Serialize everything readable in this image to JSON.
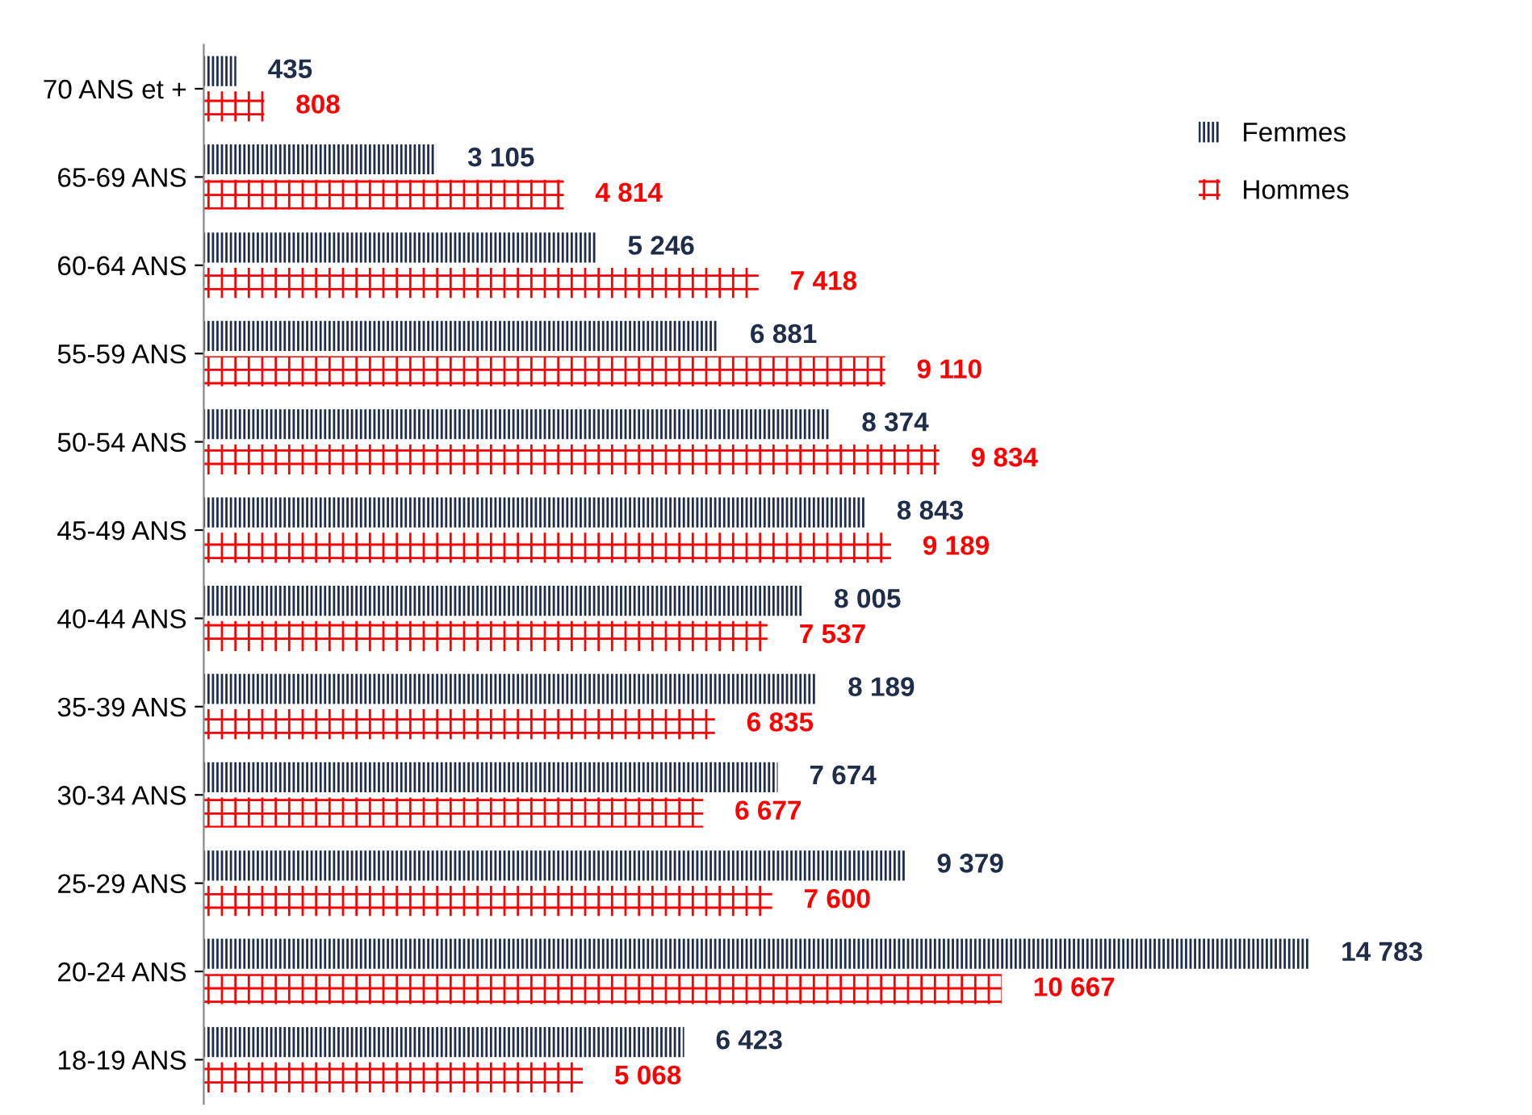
{
  "chart_data": {
    "type": "bar",
    "orientation": "horizontal",
    "legend": "top right",
    "grid": false,
    "tick_labels": "y",
    "categories": [
      "70 ANS et +",
      "65-69 ANS",
      "60-64 ANS",
      "55-59 ANS",
      "50-54 ANS",
      "45-49 ANS",
      "40-44 ANS",
      "35-39 ANS",
      "30-34 ANS",
      "25-29 ANS",
      "20-24 ANS",
      "18-19 ANS"
    ],
    "series": [
      {
        "name": "Femmes",
        "color": "#1f2d4a",
        "values": [
          435,
          3105,
          5246,
          6881,
          8374,
          8843,
          8005,
          8189,
          7674,
          9379,
          14783,
          6423
        ],
        "value_labels": [
          "435",
          "3 105",
          "5 246",
          "6 881",
          "8 374",
          "8 843",
          "8 005",
          "8 189",
          "7 674",
          "9 379",
          "14 783",
          "6 423"
        ]
      },
      {
        "name": "Hommes",
        "color": "#ff0000",
        "values": [
          808,
          4814,
          7418,
          9110,
          9834,
          9189,
          7537,
          6835,
          6677,
          7600,
          10667,
          5068
        ],
        "value_labels": [
          "808",
          "4 814",
          "7 418",
          "9 110",
          "9 834",
          "9 189",
          "7 537",
          "6 835",
          "6 677",
          "7 600",
          "10 667",
          "5 068"
        ]
      }
    ]
  }
}
